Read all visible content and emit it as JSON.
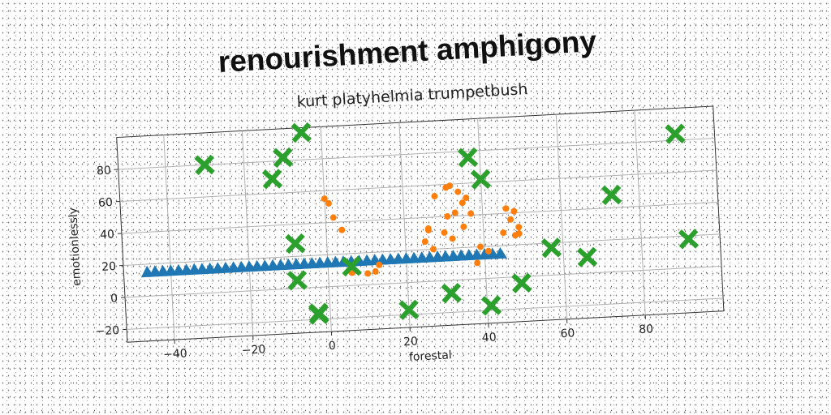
{
  "chart_data": {
    "type": "scatter",
    "title": "renourishment amphigony",
    "subtitle": "kurt platyhelmia trumpetbush",
    "xlabel": "forestal",
    "ylabel": "emotionlessly",
    "xlim": [
      -52,
      100
    ],
    "ylim": [
      -28,
      100
    ],
    "xticks": [
      -40,
      -20,
      0,
      20,
      40,
      60,
      80
    ],
    "yticks": [
      -20,
      0,
      20,
      40,
      60,
      80
    ],
    "grid": true,
    "series": [
      {
        "marker": "triangle",
        "color": "#1f77b4",
        "x": [
          -46,
          -44,
          -42,
          -40,
          -38,
          -36,
          -34,
          -32,
          -30,
          -28,
          -26,
          -24,
          -22,
          -20,
          -18,
          -16,
          -14,
          -12,
          -10,
          -8,
          -6,
          -4,
          -2,
          0,
          2,
          4,
          6,
          8,
          10,
          12,
          14,
          16,
          18,
          20,
          22,
          24,
          26,
          28,
          30,
          32,
          34,
          36,
          38,
          40,
          42,
          44
        ],
        "y": [
          15,
          15,
          15,
          15,
          15,
          15,
          15,
          15,
          15,
          15,
          15,
          15,
          15,
          15,
          15,
          15,
          15,
          15,
          15,
          15,
          15,
          15,
          15,
          15,
          15,
          15,
          15,
          15,
          15,
          15,
          15,
          15,
          15,
          15,
          15,
          15,
          15,
          15,
          15,
          15,
          15,
          15,
          15,
          15,
          15,
          15
        ]
      },
      {
        "marker": "circle",
        "color": "#ff7f0e",
        "x": [
          0,
          1,
          2,
          4,
          6,
          10,
          12,
          13,
          25,
          26,
          26,
          27,
          28,
          30,
          31,
          31,
          32,
          32,
          33,
          34,
          35,
          35,
          36,
          37,
          38,
          39,
          41,
          45,
          46,
          47,
          48,
          48,
          49,
          49
        ],
        "y": [
          55,
          52,
          43,
          35,
          8,
          7,
          8,
          12,
          25,
          33,
          32,
          20,
          53,
          30,
          58,
          40,
          59,
          26,
          42,
          55,
          48,
          33,
          51,
          41,
          10,
          20,
          17,
          28,
          43,
          36,
          41,
          26,
          27,
          31
        ]
      },
      {
        "marker": "x",
        "color": "#2ca02c",
        "x": [
          -30,
          -13,
          -10,
          -5,
          -8,
          -8,
          -3,
          -3,
          6,
          20,
          31,
          37,
          40,
          41,
          49,
          57,
          66,
          73,
          90,
          92
        ],
        "y": [
          80,
          69,
          82,
          97,
          28,
          5,
          -16,
          -17,
          12,
          -17,
          -8,
          76,
          62,
          -17,
          -4,
          17,
          10,
          48,
          84,
          18
        ]
      }
    ]
  }
}
